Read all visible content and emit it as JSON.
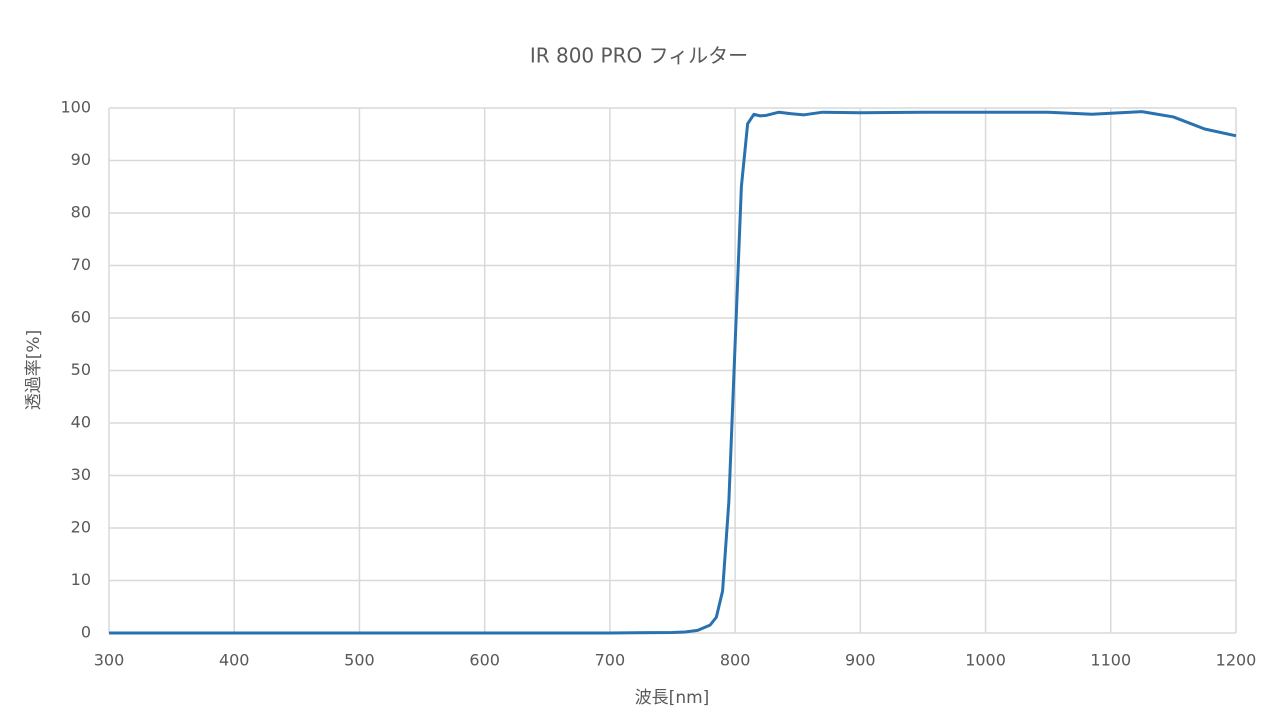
{
  "chart_data": {
    "type": "line",
    "title": "IR 800 PRO フィルター",
    "x_label": "波長[nm]",
    "y_label": "透過率[%]",
    "x": [
      300,
      400,
      500,
      600,
      700,
      750,
      760,
      770,
      780,
      785,
      790,
      795,
      800,
      805,
      810,
      815,
      820,
      825,
      835,
      845,
      855,
      870,
      900,
      950,
      1000,
      1050,
      1085,
      1100,
      1125,
      1150,
      1175,
      1200
    ],
    "series": [
      {
        "name": "IR 800 PRO",
        "color": "#2a71b0",
        "values": [
          0,
          0,
          0,
          0,
          0,
          0.1,
          0.2,
          0.5,
          1.5,
          3,
          8,
          25,
          55,
          85,
          97,
          98.8,
          98.5,
          98.6,
          99.2,
          98.9,
          98.7,
          99.2,
          99.1,
          99.2,
          99.2,
          99.2,
          98.8,
          99.0,
          99.3,
          98.3,
          96.0,
          94.7
        ]
      }
    ],
    "xlim": [
      300,
      1200
    ],
    "xticks": [
      300,
      400,
      500,
      600,
      700,
      800,
      900,
      1000,
      1100,
      1200
    ],
    "ylim": [
      0,
      100
    ],
    "yticks": [
      0,
      10,
      20,
      30,
      40,
      50,
      60,
      70,
      80,
      90,
      100
    ],
    "grid": true
  }
}
